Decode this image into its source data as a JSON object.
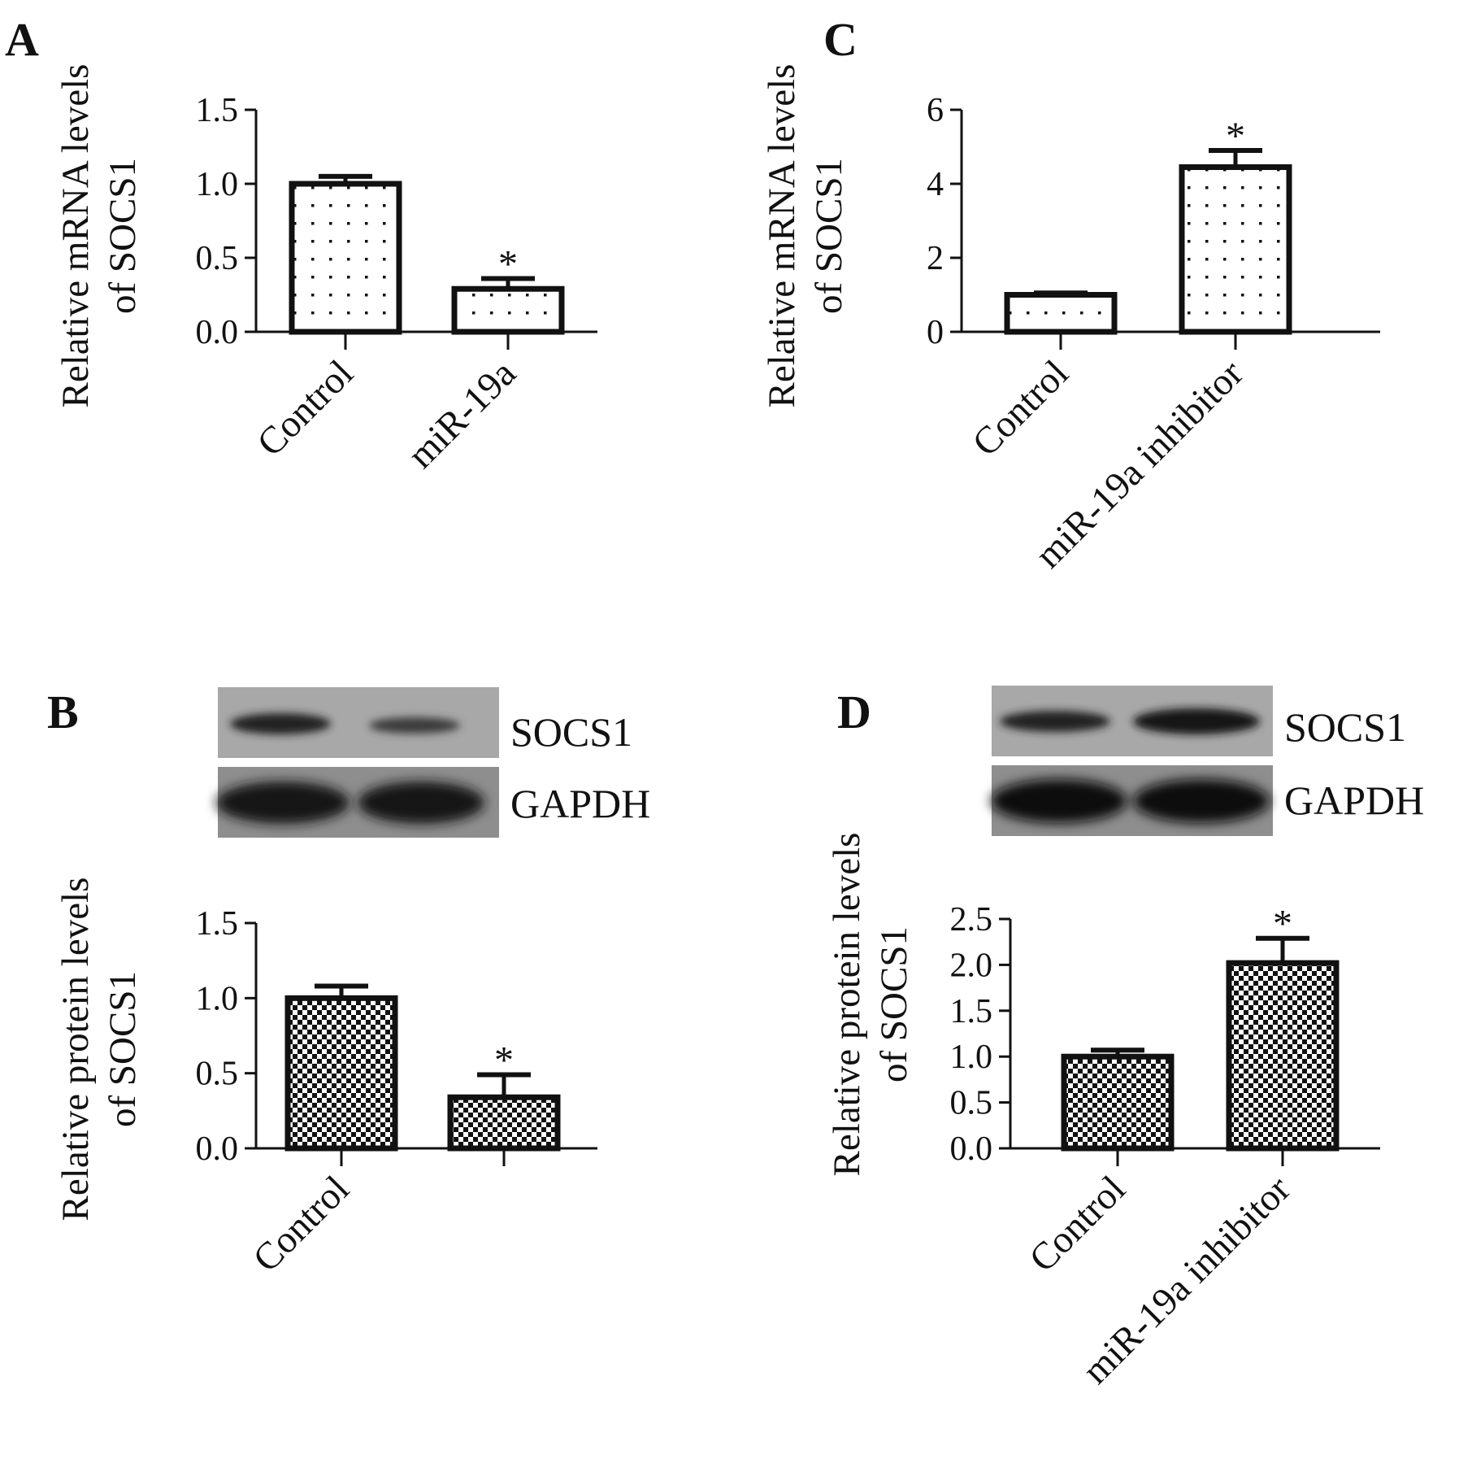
{
  "panels": [
    {
      "id": "A",
      "letter": "A",
      "chart_data": {
        "type": "bar",
        "categories": [
          "Control",
          "miR-19a"
        ],
        "values": [
          1.0,
          0.29
        ],
        "errors": [
          0.05,
          0.07
        ],
        "significance": [
          "",
          "*"
        ],
        "ylabel_lines": [
          "Relative mRNA levels",
          "of SOCS1"
        ],
        "ylim": [
          0,
          1.5
        ],
        "yticks": [
          "0.0",
          "0.5",
          "1.0",
          "1.5"
        ],
        "pattern": "dots"
      }
    },
    {
      "id": "C",
      "letter": "C",
      "chart_data": {
        "type": "bar",
        "categories": [
          "Control",
          "miR-19a inhibitor"
        ],
        "values": [
          1.0,
          4.45
        ],
        "errors": [
          0.05,
          0.45
        ],
        "significance": [
          "",
          "*"
        ],
        "ylabel_lines": [
          "Relative mRNA levels",
          "of SOCS1"
        ],
        "ylim": [
          0,
          6
        ],
        "yticks": [
          "0",
          "2",
          "4",
          "6"
        ],
        "pattern": "dots"
      }
    },
    {
      "id": "B",
      "letter": "B",
      "blot": {
        "labels": [
          "SOCS1",
          "GAPDH"
        ]
      },
      "chart_data": {
        "type": "bar",
        "categories": [
          "Control",
          ""
        ],
        "values": [
          1.0,
          0.34
        ],
        "errors": [
          0.08,
          0.15
        ],
        "significance": [
          "",
          "*"
        ],
        "ylabel_lines": [
          "Relative protein levels",
          "of SOCS1"
        ],
        "ylim": [
          0,
          1.5
        ],
        "yticks": [
          "0.0",
          "0.5",
          "1.0",
          "1.5"
        ],
        "pattern": "checker"
      }
    },
    {
      "id": "D",
      "letter": "D",
      "blot": {
        "labels": [
          "SOCS1",
          "GAPDH"
        ]
      },
      "chart_data": {
        "type": "bar",
        "categories": [
          "Control",
          "miR-19a inhibitor"
        ],
        "values": [
          1.0,
          2.02
        ],
        "errors": [
          0.07,
          0.27
        ],
        "significance": [
          "",
          "*"
        ],
        "ylabel_lines": [
          "Relative protein levels",
          "of SOCS1"
        ],
        "ylim": [
          0,
          2.5
        ],
        "yticks": [
          "0.0",
          "0.5",
          "1.0",
          "1.5",
          "2.0",
          "2.5"
        ],
        "pattern": "checker"
      }
    }
  ]
}
